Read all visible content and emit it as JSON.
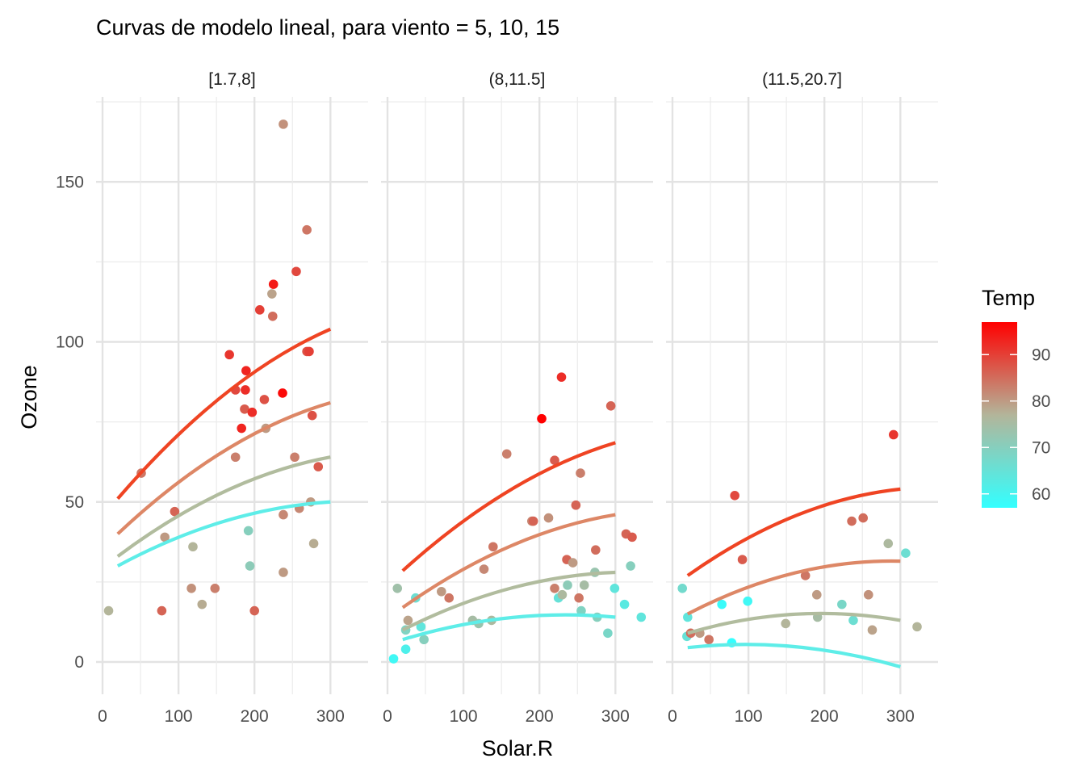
{
  "chart_data": {
    "type": "scatter",
    "title": "Curvas de modelo lineal, para viento = 5, 10, 15",
    "xlabel": "Solar.R",
    "ylabel": "Ozone",
    "xlim": [
      -10,
      345
    ],
    "ylim": [
      -10,
      175
    ],
    "x_ticks": [
      0,
      100,
      200,
      300
    ],
    "x_tick_labels": [
      "0",
      "100",
      "200",
      "300"
    ],
    "y_ticks": [
      0,
      50,
      100,
      150
    ],
    "y_tick_labels": [
      "0",
      "50",
      "100",
      "150"
    ],
    "grid": true,
    "legend": {
      "title": "Temp",
      "placement": "right",
      "range": [
        57,
        97
      ],
      "ticks": [
        60,
        70,
        80,
        90
      ],
      "tick_labels": [
        "60",
        "70",
        "80",
        "90"
      ],
      "colors": {
        "low": "#33FFFF",
        "mid": "#B3B59A",
        "high": "#FF0000"
      }
    },
    "panels": [
      {
        "label": "[1.7,8]",
        "points": [
          {
            "x": 8,
            "y": 16,
            "t": 77
          },
          {
            "x": 51,
            "y": 59,
            "t": 84
          },
          {
            "x": 78,
            "y": 16,
            "t": 86
          },
          {
            "x": 82,
            "y": 39,
            "t": 80
          },
          {
            "x": 95,
            "y": 47,
            "t": 86
          },
          {
            "x": 117,
            "y": 23,
            "t": 81
          },
          {
            "x": 119,
            "y": 36,
            "t": 77
          },
          {
            "x": 131,
            "y": 18,
            "t": 78
          },
          {
            "x": 148,
            "y": 23,
            "t": 83
          },
          {
            "x": 167,
            "y": 96,
            "t": 91
          },
          {
            "x": 175,
            "y": 85,
            "t": 89
          },
          {
            "x": 175,
            "y": 64,
            "t": 83
          },
          {
            "x": 183,
            "y": 73,
            "t": 93
          },
          {
            "x": 187,
            "y": 79,
            "t": 87
          },
          {
            "x": 188,
            "y": 85,
            "t": 92
          },
          {
            "x": 189,
            "y": 91,
            "t": 93
          },
          {
            "x": 192,
            "y": 41,
            "t": 70
          },
          {
            "x": 194,
            "y": 30,
            "t": 71
          },
          {
            "x": 197,
            "y": 78,
            "t": 92
          },
          {
            "x": 200,
            "y": 16,
            "t": 86
          },
          {
            "x": 207,
            "y": 110,
            "t": 90
          },
          {
            "x": 213,
            "y": 82,
            "t": 88
          },
          {
            "x": 215,
            "y": 73,
            "t": 80
          },
          {
            "x": 223,
            "y": 115,
            "t": 79
          },
          {
            "x": 224,
            "y": 108,
            "t": 85
          },
          {
            "x": 225,
            "y": 118,
            "t": 94
          },
          {
            "x": 237,
            "y": 84,
            "t": 96
          },
          {
            "x": 238,
            "y": 46,
            "t": 82
          },
          {
            "x": 238,
            "y": 28,
            "t": 80
          },
          {
            "x": 238,
            "y": 168,
            "t": 81
          },
          {
            "x": 253,
            "y": 64,
            "t": 83
          },
          {
            "x": 255,
            "y": 122,
            "t": 89
          },
          {
            "x": 259,
            "y": 48,
            "t": 82
          },
          {
            "x": 269,
            "y": 135,
            "t": 84
          },
          {
            "x": 269,
            "y": 97,
            "t": 88
          },
          {
            "x": 272,
            "y": 97,
            "t": 90
          },
          {
            "x": 274,
            "y": 50,
            "t": 80
          },
          {
            "x": 276,
            "y": 77,
            "t": 88
          },
          {
            "x": 278,
            "y": 37,
            "t": 78
          },
          {
            "x": 284,
            "y": 61,
            "t": 87
          }
        ],
        "curves": [
          {
            "temp": 91,
            "color": "#EF4423",
            "x": [
              20,
              300
            ],
            "y": [
              51,
              104
            ]
          },
          {
            "temp": 82,
            "color": "#DD8766",
            "x": [
              20,
              300
            ],
            "y": [
              40,
              81
            ]
          },
          {
            "temp": 71,
            "color": "#B1BC9E",
            "x": [
              20,
              300
            ],
            "y": [
              33,
              64
            ]
          },
          {
            "temp": 60,
            "color": "#5EEDE8",
            "x": [
              20,
              300
            ],
            "y": [
              30,
              50
            ]
          }
        ]
      },
      {
        "label": "(8,11.5]",
        "points": [
          {
            "x": 8,
            "y": 1,
            "t": 59
          },
          {
            "x": 13,
            "y": 23,
            "t": 74
          },
          {
            "x": 24,
            "y": 4,
            "t": 61
          },
          {
            "x": 24,
            "y": 10,
            "t": 69
          },
          {
            "x": 27,
            "y": 13,
            "t": 79
          },
          {
            "x": 37,
            "y": 20,
            "t": 66
          },
          {
            "x": 44,
            "y": 11,
            "t": 64
          },
          {
            "x": 48,
            "y": 7,
            "t": 70
          },
          {
            "x": 71,
            "y": 22,
            "t": 80
          },
          {
            "x": 81,
            "y": 20,
            "t": 84
          },
          {
            "x": 112,
            "y": 13,
            "t": 75
          },
          {
            "x": 120,
            "y": 12,
            "t": 73
          },
          {
            "x": 127,
            "y": 29,
            "t": 82
          },
          {
            "x": 137,
            "y": 13,
            "t": 76
          },
          {
            "x": 139,
            "y": 36,
            "t": 84
          },
          {
            "x": 157,
            "y": 65,
            "t": 83
          },
          {
            "x": 190,
            "y": 44,
            "t": 82
          },
          {
            "x": 192,
            "y": 44,
            "t": 86
          },
          {
            "x": 203,
            "y": 76,
            "t": 97
          },
          {
            "x": 212,
            "y": 45,
            "t": 81
          },
          {
            "x": 220,
            "y": 63,
            "t": 87
          },
          {
            "x": 220,
            "y": 23,
            "t": 83
          },
          {
            "x": 225,
            "y": 20,
            "t": 65
          },
          {
            "x": 229,
            "y": 89,
            "t": 92
          },
          {
            "x": 230,
            "y": 21,
            "t": 76
          },
          {
            "x": 236,
            "y": 32,
            "t": 86
          },
          {
            "x": 237,
            "y": 24,
            "t": 71
          },
          {
            "x": 244,
            "y": 31,
            "t": 80
          },
          {
            "x": 248,
            "y": 49,
            "t": 86
          },
          {
            "x": 252,
            "y": 20,
            "t": 84
          },
          {
            "x": 254,
            "y": 59,
            "t": 83
          },
          {
            "x": 255,
            "y": 16,
            "t": 69
          },
          {
            "x": 259,
            "y": 24,
            "t": 75
          },
          {
            "x": 273,
            "y": 28,
            "t": 73
          },
          {
            "x": 274,
            "y": 35,
            "t": 85
          },
          {
            "x": 276,
            "y": 14,
            "t": 70
          },
          {
            "x": 290,
            "y": 9,
            "t": 68
          },
          {
            "x": 294,
            "y": 80,
            "t": 86
          },
          {
            "x": 299,
            "y": 23,
            "t": 64
          },
          {
            "x": 312,
            "y": 18,
            "t": 63
          },
          {
            "x": 314,
            "y": 40,
            "t": 86
          },
          {
            "x": 320,
            "y": 30,
            "t": 70
          },
          {
            "x": 322,
            "y": 39,
            "t": 87
          },
          {
            "x": 334,
            "y": 14,
            "t": 64
          }
        ],
        "curves": [
          {
            "temp": 91,
            "color": "#EF4423",
            "x": [
              20,
              300
            ],
            "y": [
              28.5,
              68.5
            ]
          },
          {
            "temp": 82,
            "color": "#DD8766",
            "x": [
              20,
              300
            ],
            "y": [
              17,
              46
            ]
          },
          {
            "temp": 71,
            "color": "#B1BC9E",
            "x": [
              20,
              300
            ],
            "y": [
              10,
              28
            ]
          },
          {
            "temp": 60,
            "color": "#5EEDE8",
            "x": [
              20,
              300
            ],
            "y": [
              7,
              14
            ]
          }
        ]
      },
      {
        "label": "(11.5,20.7]",
        "points": [
          {
            "x": 13,
            "y": 23,
            "t": 67
          },
          {
            "x": 19,
            "y": 8,
            "t": 65
          },
          {
            "x": 20,
            "y": 14,
            "t": 64
          },
          {
            "x": 24,
            "y": 9,
            "t": 85
          },
          {
            "x": 36,
            "y": 9,
            "t": 80
          },
          {
            "x": 48,
            "y": 7,
            "t": 84
          },
          {
            "x": 65,
            "y": 18,
            "t": 58
          },
          {
            "x": 78,
            "y": 6,
            "t": 57
          },
          {
            "x": 82,
            "y": 52,
            "t": 89
          },
          {
            "x": 92,
            "y": 32,
            "t": 87
          },
          {
            "x": 99,
            "y": 19,
            "t": 59
          },
          {
            "x": 149,
            "y": 12,
            "t": 77
          },
          {
            "x": 175,
            "y": 27,
            "t": 84
          },
          {
            "x": 190,
            "y": 21,
            "t": 80
          },
          {
            "x": 191,
            "y": 14,
            "t": 75
          },
          {
            "x": 223,
            "y": 18,
            "t": 68
          },
          {
            "x": 236,
            "y": 44,
            "t": 85
          },
          {
            "x": 238,
            "y": 13,
            "t": 66
          },
          {
            "x": 251,
            "y": 45,
            "t": 85
          },
          {
            "x": 258,
            "y": 21,
            "t": 81
          },
          {
            "x": 263,
            "y": 10,
            "t": 79
          },
          {
            "x": 284,
            "y": 37,
            "t": 76
          },
          {
            "x": 291,
            "y": 71,
            "t": 91
          },
          {
            "x": 307,
            "y": 34,
            "t": 66
          },
          {
            "x": 322,
            "y": 11,
            "t": 77
          }
        ],
        "curves": [
          {
            "temp": 91,
            "color": "#EF4423",
            "x": [
              20,
              300
            ],
            "y": [
              27,
              54
            ]
          },
          {
            "temp": 82,
            "color": "#DD8766",
            "x": [
              20,
              300
            ],
            "y": [
              15,
              31.5
            ]
          },
          {
            "temp": 71,
            "color": "#B1BC9E",
            "x": [
              20,
              300
            ],
            "y": [
              9,
              13
            ]
          },
          {
            "temp": 60,
            "color": "#5EEDE8",
            "x": [
              20,
              300
            ],
            "y": [
              4.5,
              -1.5
            ]
          }
        ]
      }
    ]
  }
}
